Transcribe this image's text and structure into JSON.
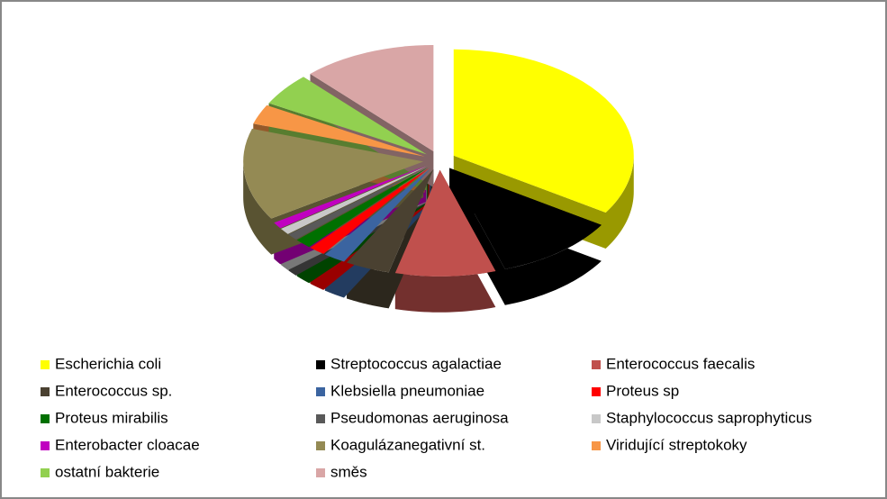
{
  "chart_data": {
    "type": "pie",
    "categories": [
      "Escherichia coli",
      "Streptococcus agalactiae",
      "Enterococcus faecalis",
      "Enterococcus sp.",
      "Klebsiella pneumoniae",
      "Proteus sp",
      "Proteus mirabilis",
      "Pseudomonas aeruginosa",
      "Staphylococcus saprophyticus",
      "Enterobacter cloacae",
      "Koagulázanegativní st.",
      "Viridující streptokoky",
      "ostatní bakterie",
      "směs"
    ],
    "values": [
      34,
      11,
      9,
      4,
      2,
      1.5,
      1.5,
      1,
      1,
      1,
      14,
      3,
      5,
      12
    ],
    "colors": [
      "#ffff00",
      "#000000",
      "#c0504d",
      "#4a4131",
      "#3b64a0",
      "#ff0000",
      "#007000",
      "#595959",
      "#c8c8c8",
      "#c000c0",
      "#948a54",
      "#f79646",
      "#92d050",
      "#d9a6a6"
    ],
    "legend": "bottom"
  }
}
